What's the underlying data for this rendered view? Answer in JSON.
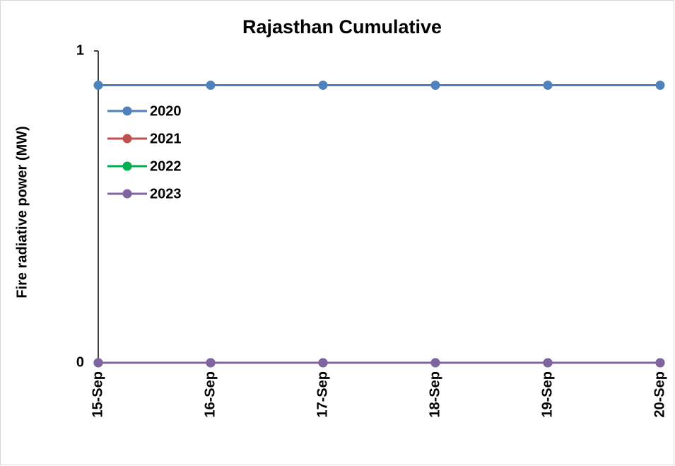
{
  "chart_data": {
    "type": "line",
    "title": "Rajasthan Cumulative",
    "ylabel": "Fire radiative power (MW)",
    "categories": [
      "15-Sep",
      "16-Sep",
      "17-Sep",
      "18-Sep",
      "19-Sep",
      "20-Sep"
    ],
    "series": [
      {
        "name": "2020",
        "color": "#4f81bd",
        "values": [
          0.89,
          0.89,
          0.89,
          0.89,
          0.89,
          0.89
        ]
      },
      {
        "name": "2021",
        "color": "#c0504d",
        "values": [
          0,
          0,
          0,
          0,
          0,
          0
        ]
      },
      {
        "name": "2022",
        "color": "#00b050",
        "values": [
          0,
          0,
          0,
          0,
          0,
          0
        ]
      },
      {
        "name": "2023",
        "color": "#8064a2",
        "values": [
          0,
          0,
          0,
          0,
          0,
          0
        ]
      }
    ],
    "ylim": [
      0,
      1
    ],
    "yticks": [
      0,
      1
    ],
    "grid": false,
    "legend": "upper left"
  }
}
